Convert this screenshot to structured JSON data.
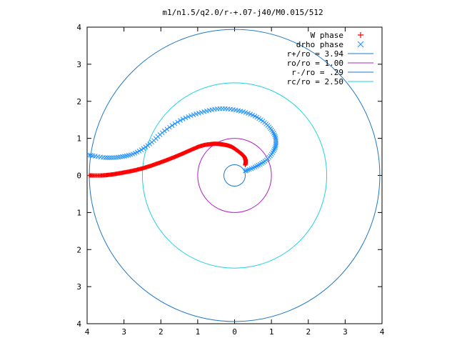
{
  "chart_data": {
    "type": "scatter",
    "title": "m1/n1.5/q2.0/r-+.07-j40/M0.015/512",
    "xlim": [
      4,
      -4
    ],
    "ylim": [
      4,
      -4
    ],
    "x_tick_labels": [
      "4",
      "3",
      "2",
      "1",
      "0",
      "1",
      "2",
      "3",
      "4"
    ],
    "y_tick_labels": [
      "4",
      "3",
      "2",
      "1",
      "0",
      "1",
      "2",
      "3",
      "4"
    ],
    "grid": false,
    "legend_position": "top-right",
    "legend": [
      {
        "label": "W phase",
        "marker": "+",
        "color": "#ff0000"
      },
      {
        "label": "drho phase",
        "marker": "x",
        "color": "#1e90ff"
      },
      {
        "label": "r+/ro = 3.94",
        "marker": "line",
        "color": "#1f78c8"
      },
      {
        "label": "ro/ro = 1.00",
        "marker": "line",
        "color": "#b020c0"
      },
      {
        "label": "r-/ro = .29",
        "marker": "line",
        "color": "#1f78c8"
      },
      {
        "label": "rc/ro = 2.50",
        "marker": "line",
        "color": "#22d0e0"
      }
    ],
    "circles": [
      {
        "name": "r+/ro",
        "radius": 3.94,
        "color": "#1f78c8"
      },
      {
        "name": "ro/ro",
        "radius": 1.0,
        "color": "#b020c0"
      },
      {
        "name": "r-/ro",
        "radius": 0.29,
        "color": "#1f78c8"
      },
      {
        "name": "rc/ro",
        "radius": 2.5,
        "color": "#22d0e0"
      }
    ],
    "series": [
      {
        "name": "W phase",
        "marker": "+",
        "color": "#ff0000",
        "points": [
          [
            -0.29,
            0.28
          ],
          [
            -0.3,
            0.4
          ],
          [
            -0.25,
            0.52
          ],
          [
            -0.1,
            0.65
          ],
          [
            0.1,
            0.78
          ],
          [
            0.35,
            0.84
          ],
          [
            0.6,
            0.85
          ],
          [
            0.9,
            0.8
          ],
          [
            1.2,
            0.68
          ],
          [
            1.5,
            0.55
          ],
          [
            1.8,
            0.43
          ],
          [
            2.1,
            0.32
          ],
          [
            2.4,
            0.22
          ],
          [
            2.7,
            0.14
          ],
          [
            3.0,
            0.08
          ],
          [
            3.3,
            0.03
          ],
          [
            3.6,
            0.0
          ],
          [
            3.94,
            0.0
          ]
        ]
      },
      {
        "name": "drho phase",
        "marker": "x",
        "color": "#1e90ff",
        "points": [
          [
            -0.29,
            0.12
          ],
          [
            -0.6,
            0.25
          ],
          [
            -0.9,
            0.45
          ],
          [
            -1.1,
            0.75
          ],
          [
            -1.1,
            1.05
          ],
          [
            -0.9,
            1.35
          ],
          [
            -0.55,
            1.6
          ],
          [
            -0.1,
            1.75
          ],
          [
            0.4,
            1.8
          ],
          [
            0.9,
            1.7
          ],
          [
            1.4,
            1.52
          ],
          [
            1.9,
            1.2
          ],
          [
            2.3,
            0.85
          ],
          [
            2.7,
            0.6
          ],
          [
            3.1,
            0.5
          ],
          [
            3.5,
            0.48
          ],
          [
            3.94,
            0.55
          ]
        ]
      }
    ]
  }
}
